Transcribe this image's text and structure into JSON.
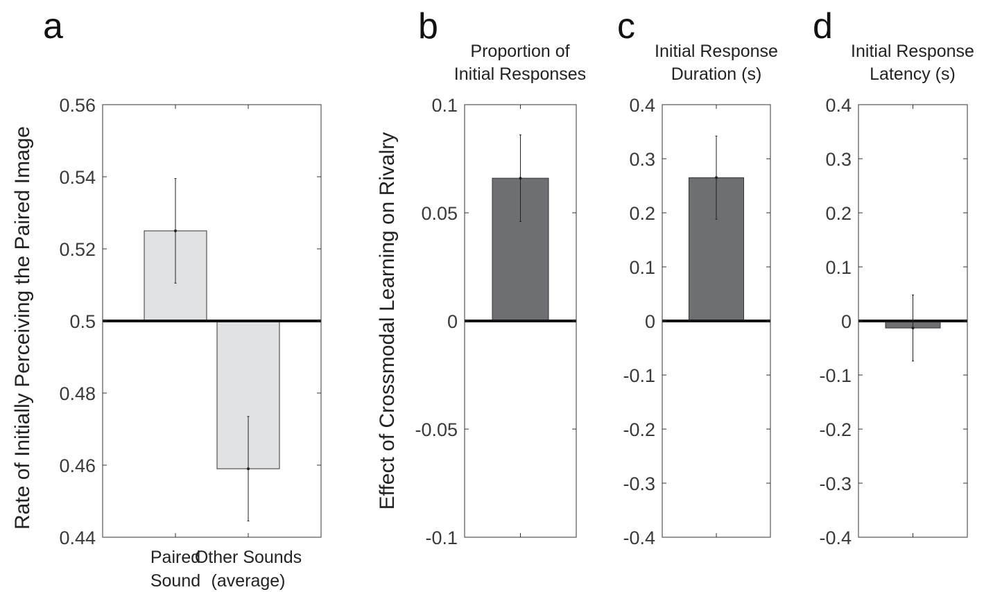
{
  "chart_data": [
    {
      "panel": "a",
      "type": "bar",
      "title": "",
      "ylabel": "Rate of Initially Perceiving the Paired Image",
      "xlabel": "",
      "categories": [
        [
          "Paired",
          "Sound"
        ],
        [
          "Other Sounds",
          "(average)"
        ]
      ],
      "values": [
        0.525,
        0.459
      ],
      "errors": [
        [
          0.5105,
          0.5395
        ],
        [
          0.4445,
          0.4735
        ]
      ],
      "baseline": 0.5,
      "ylim": [
        0.44,
        0.56
      ],
      "yticks": [
        0.44,
        0.46,
        0.48,
        0.5,
        0.52,
        0.54,
        0.56
      ],
      "ytick_labels": [
        "0.44",
        "0.46",
        "0.48",
        "0.5",
        "0.52",
        "0.54",
        "0.56"
      ],
      "bar_color": "#e0e1e3",
      "grid": false
    },
    {
      "panel": "b",
      "type": "bar",
      "title": [
        "Proportion of",
        "Initial Responses"
      ],
      "ylabel": "Effect of Crossmodal Learning on Rivalry",
      "xlabel": "",
      "categories": [
        ""
      ],
      "values": [
        0.066
      ],
      "errors": [
        [
          0.046,
          0.086
        ]
      ],
      "baseline": 0,
      "ylim": [
        -0.1,
        0.1
      ],
      "yticks": [
        -0.1,
        -0.05,
        0,
        0.05,
        0.1
      ],
      "ytick_labels": [
        "-0.1",
        "-0.05",
        "0",
        "0.05",
        "0.1"
      ],
      "bar_color": "#6e6f73",
      "grid": false
    },
    {
      "panel": "c",
      "type": "bar",
      "title": [
        "Initial Response",
        "Duration (s)"
      ],
      "ylabel": "",
      "xlabel": "",
      "categories": [
        ""
      ],
      "values": [
        0.265
      ],
      "errors": [
        [
          0.188,
          0.342
        ]
      ],
      "baseline": 0,
      "ylim": [
        -0.4,
        0.4
      ],
      "yticks": [
        -0.4,
        -0.3,
        -0.2,
        -0.1,
        0,
        0.1,
        0.2,
        0.3,
        0.4
      ],
      "ytick_labels": [
        "-0.4",
        "-0.3",
        "-0.2",
        "-0.1",
        "0",
        "0.1",
        "0.2",
        "0.3",
        "0.4"
      ],
      "bar_color": "#6e6f73",
      "grid": false
    },
    {
      "panel": "d",
      "type": "bar",
      "title": [
        "Initial Response",
        "Latency (s)"
      ],
      "ylabel": "",
      "xlabel": "",
      "categories": [
        ""
      ],
      "values": [
        -0.013
      ],
      "errors": [
        [
          -0.074,
          0.048
        ]
      ],
      "baseline": 0,
      "ylim": [
        -0.4,
        0.4
      ],
      "yticks": [
        -0.4,
        -0.3,
        -0.2,
        -0.1,
        0,
        0.1,
        0.2,
        0.3,
        0.4
      ],
      "ytick_labels": [
        "-0.4",
        "-0.3",
        "-0.2",
        "-0.1",
        "0",
        "0.1",
        "0.2",
        "0.3",
        "0.4"
      ],
      "bar_color": "#6e6f73",
      "grid": false
    }
  ]
}
